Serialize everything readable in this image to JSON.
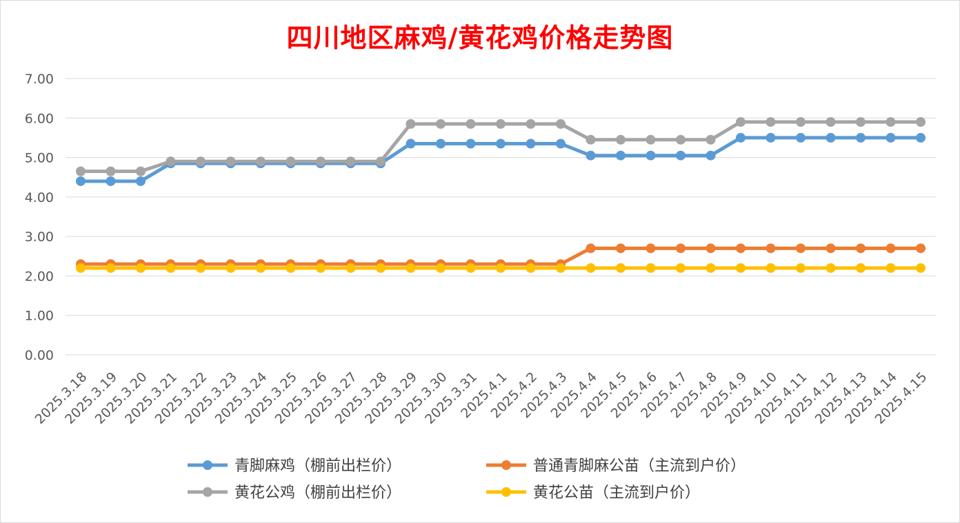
{
  "chart_data": {
    "type": "line",
    "title": "四川地区麻鸡/黄花鸡价格走势图",
    "xlabel": "",
    "ylabel": "",
    "ylim": [
      0,
      7
    ],
    "y_ticks": [
      "0.00",
      "1.00",
      "2.00",
      "3.00",
      "4.00",
      "5.00",
      "6.00",
      "7.00"
    ],
    "grid": true,
    "legend_position": "bottom",
    "categories": [
      "2025.3.18",
      "2025.3.19",
      "2025.3.20",
      "2025.3.21",
      "2025.3.22",
      "2025.3.23",
      "2025.3.24",
      "2025.3.25",
      "2025.3.26",
      "2025.3.27",
      "2025.3.28",
      "2025.3.29",
      "2025.3.30",
      "2025.3.31",
      "2025.4.1",
      "2025.4.2",
      "2025.4.3",
      "2025.4.4",
      "2025.4.5",
      "2025.4.6",
      "2025.4.7",
      "2025.4.8",
      "2025.4.9",
      "2025.4.10",
      "2025.4.11",
      "2025.4.12",
      "2025.4.13",
      "2025.4.14",
      "2025.4.15"
    ],
    "series": [
      {
        "name": "青脚麻鸡（棚前出栏价）",
        "color": "#5b9bd5",
        "values": [
          4.4,
          4.4,
          4.4,
          4.85,
          4.85,
          4.85,
          4.85,
          4.85,
          4.85,
          4.85,
          4.85,
          5.35,
          5.35,
          5.35,
          5.35,
          5.35,
          5.35,
          5.05,
          5.05,
          5.05,
          5.05,
          5.05,
          5.5,
          5.5,
          5.5,
          5.5,
          5.5,
          5.5,
          5.5
        ]
      },
      {
        "name": "普通青脚麻公苗（主流到户价）",
        "color": "#ed7d31",
        "values": [
          2.3,
          2.3,
          2.3,
          2.3,
          2.3,
          2.3,
          2.3,
          2.3,
          2.3,
          2.3,
          2.3,
          2.3,
          2.3,
          2.3,
          2.3,
          2.3,
          2.3,
          2.7,
          2.7,
          2.7,
          2.7,
          2.7,
          2.7,
          2.7,
          2.7,
          2.7,
          2.7,
          2.7,
          2.7
        ]
      },
      {
        "name": "黄花公鸡（棚前出栏价）",
        "color": "#a5a5a5",
        "values": [
          4.65,
          4.65,
          4.65,
          4.9,
          4.9,
          4.9,
          4.9,
          4.9,
          4.9,
          4.9,
          4.9,
          5.85,
          5.85,
          5.85,
          5.85,
          5.85,
          5.85,
          5.45,
          5.45,
          5.45,
          5.45,
          5.45,
          5.9,
          5.9,
          5.9,
          5.9,
          5.9,
          5.9,
          5.9
        ]
      },
      {
        "name": "黄花公苗（主流到户价）",
        "color": "#ffc000",
        "values": [
          2.2,
          2.2,
          2.2,
          2.2,
          2.2,
          2.2,
          2.2,
          2.2,
          2.2,
          2.2,
          2.2,
          2.2,
          2.2,
          2.2,
          2.2,
          2.2,
          2.2,
          2.2,
          2.2,
          2.2,
          2.2,
          2.2,
          2.2,
          2.2,
          2.2,
          2.2,
          2.2,
          2.2,
          2.2
        ]
      }
    ]
  }
}
